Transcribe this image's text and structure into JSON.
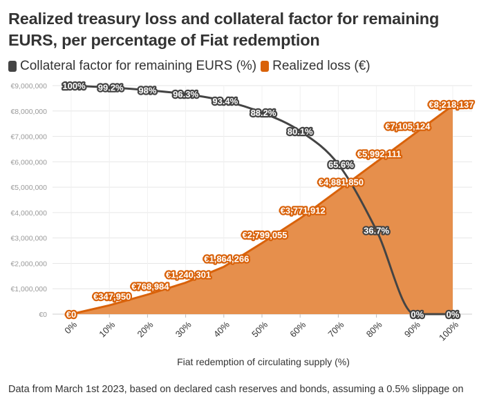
{
  "title": "Realized treasury loss and collateral factor for remaining EURS, per percentage of Fiat redemption",
  "footer": "Data from March 1st 2023, based on declared cash reserves and bonds, assuming a 0.5% slippage on",
  "colors": {
    "collateral": "#444444",
    "loss": "#d9620a",
    "area": "#e68f4c"
  },
  "chart_data": {
    "type": "line",
    "title": "Realized treasury loss and collateral factor for remaining EURS, per percentage of Fiat redemption",
    "xlabel": "Fiat redemption of circulating supply (%)",
    "ylabel": "",
    "x": [
      0,
      10,
      20,
      30,
      40,
      50,
      60,
      70,
      80,
      90,
      100
    ],
    "x_tick_labels": [
      "0%",
      "10%",
      "20%",
      "30%",
      "40%",
      "50%",
      "60%",
      "70%",
      "80%",
      "90%",
      "100%"
    ],
    "ylim": [
      0,
      9000000
    ],
    "y_ticks": [
      0,
      1000000,
      2000000,
      3000000,
      4000000,
      5000000,
      6000000,
      7000000,
      8000000,
      9000000
    ],
    "y_tick_labels": [
      "€0",
      "€1,000,000",
      "€2,000,000",
      "€3,000,000",
      "€4,000,000",
      "€5,000,000",
      "€6,000,000",
      "€7,000,000",
      "€8,000,000",
      "€9,000,000"
    ],
    "series": [
      {
        "name": "Collateral factor for remaining EURS (%)",
        "kind": "line",
        "values": [
          100,
          99.2,
          98,
          96.3,
          93.4,
          88.2,
          80.1,
          65.6,
          36.7,
          0,
          0
        ],
        "labels": [
          "100%",
          "99.2%",
          "98%",
          "96.3%",
          "93.4%",
          "88.2%",
          "80.1%",
          "65.6%",
          "36.7%",
          "0%",
          "0%"
        ]
      },
      {
        "name": "Realized loss (€)",
        "kind": "area",
        "values": [
          0,
          347950,
          768984,
          1240301,
          1864266,
          2799055,
          3771912,
          4881850,
          5992111,
          7105124,
          8218137
        ],
        "labels": [
          "€0",
          "€347,950",
          "€768,984",
          "€1,240,301",
          "€1,864,266",
          "€2,799,055",
          "€3,771,912",
          "€4,881,850",
          "€5,992,111",
          "€7,105,124",
          "€8,218,137"
        ]
      }
    ]
  }
}
